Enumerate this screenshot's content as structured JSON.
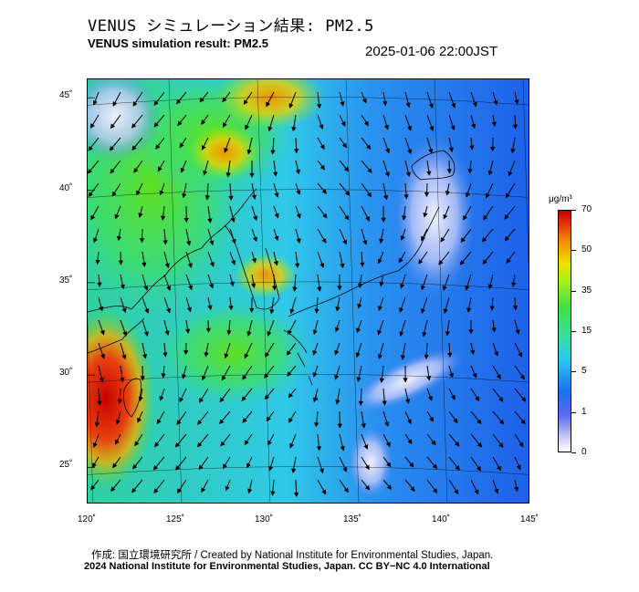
{
  "header": {
    "title_jp": "VENUS シミュレーション結果: PM2.5",
    "title_en": "VENUS simulation result: PM2.5",
    "timestamp": "2025-01-06 22:00JST"
  },
  "map": {
    "lat_labels": [
      "45˚",
      "40˚",
      "35˚",
      "30˚",
      "25˚"
    ],
    "lon_labels": [
      "120˚",
      "125˚",
      "130˚",
      "135˚",
      "140˚",
      "145˚"
    ],
    "lat_values": [
      45,
      40,
      35,
      30,
      25
    ],
    "lon_values": [
      120,
      125,
      130,
      135,
      140,
      145
    ],
    "lon_range": [
      120,
      145
    ],
    "lat_range": [
      23,
      46
    ]
  },
  "legend": {
    "unit": "μg/m³",
    "ticks": [
      "70",
      "50",
      "35",
      "15",
      "5",
      "1",
      "0"
    ],
    "colors": [
      "#c00000",
      "#f09000",
      "#f0e000",
      "#40e040",
      "#28c8f0",
      "#1f6ff0",
      "#ffffff"
    ]
  },
  "footer": {
    "credit_line1": "作成: 国立環境研究所 / Created by National Institute for Environmental Studies, Japan.",
    "credit_line2": "2024 National Institute for Environmental Studies, Japan. CC BY−NC 4.0 International"
  }
}
